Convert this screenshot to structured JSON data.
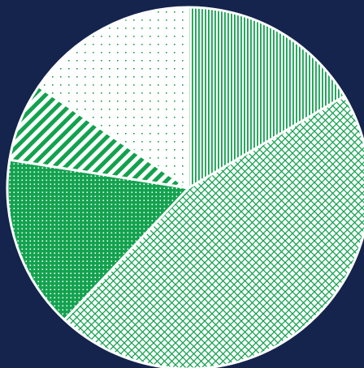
{
  "colors": {
    "background": "#14244d",
    "slice_fill": "#12a24e",
    "slice_background": "#ffffff",
    "slice_border": "#ffffff"
  },
  "chart_data": {
    "type": "pie",
    "title": "",
    "start_angle_deg": 0,
    "direction": "clockwise",
    "slices": [
      {
        "value": 16.5,
        "pattern": "vertical-lines"
      },
      {
        "value": 45.5,
        "pattern": "crosshatch"
      },
      {
        "value": 15.5,
        "pattern": "dense-dots"
      },
      {
        "value": 7.0,
        "pattern": "diagonal-stripes"
      },
      {
        "value": 15.5,
        "pattern": "sparse-dots"
      }
    ]
  }
}
